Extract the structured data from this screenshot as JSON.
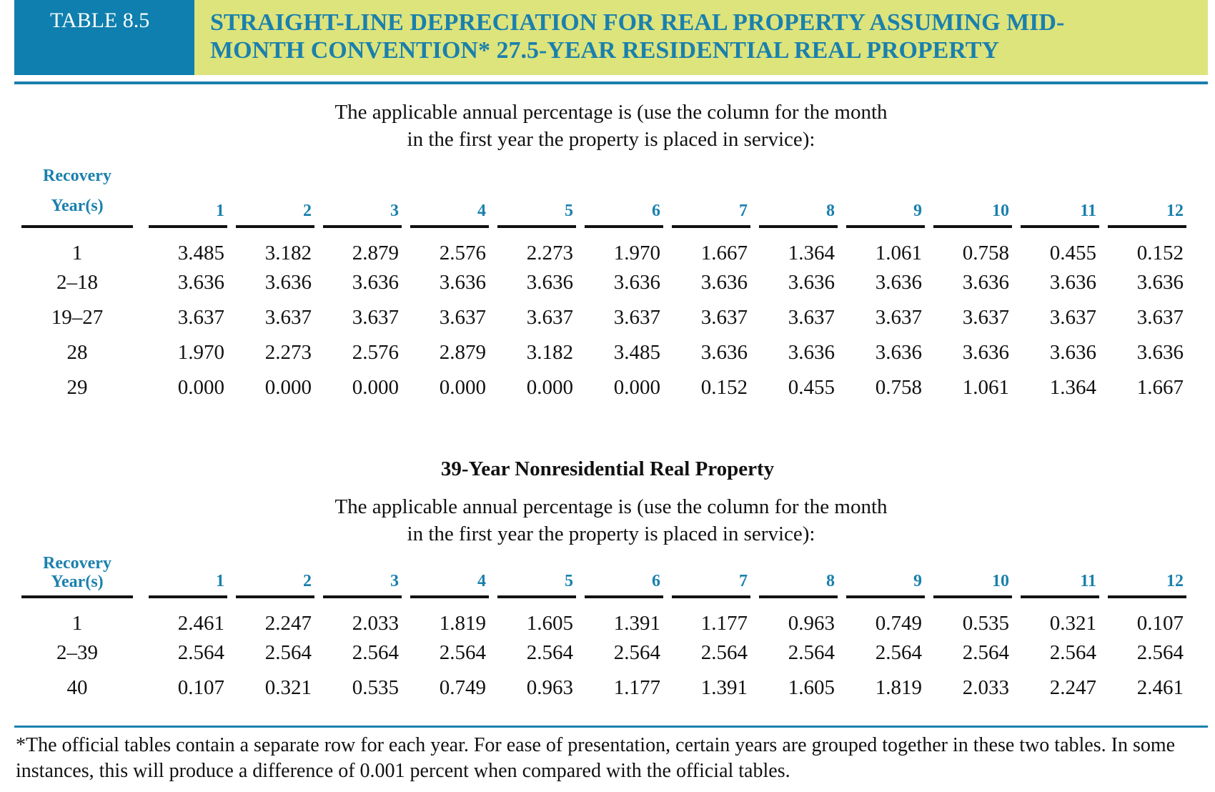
{
  "header": {
    "label": "TABLE 8.5",
    "title": "STRAIGHT-LINE DEPRECIATION FOR REAL PROPERTY ASSUMING MID-MONTH CONVENTION* 27.5-YEAR RESIDENTIAL REAL PROPERTY"
  },
  "tables": [
    {
      "intro": "The applicable annual percentage is (use the column for the month in the first year the property is placed in service):",
      "row_header": "Recovery Year(s)",
      "columns": [
        "1",
        "2",
        "3",
        "4",
        "5",
        "6",
        "7",
        "8",
        "9",
        "10",
        "11",
        "12"
      ],
      "rows": [
        {
          "label": "1",
          "values": [
            "3.485",
            "3.182",
            "2.879",
            "2.576",
            "2.273",
            "1.970",
            "1.667",
            "1.364",
            "1.061",
            "0.758",
            "0.455",
            "0.152"
          ]
        },
        {
          "label": "2–18",
          "values": [
            "3.636",
            "3.636",
            "3.636",
            "3.636",
            "3.636",
            "3.636",
            "3.636",
            "3.636",
            "3.636",
            "3.636",
            "3.636",
            "3.636"
          ]
        },
        {
          "label": "19–27",
          "values": [
            "3.637",
            "3.637",
            "3.637",
            "3.637",
            "3.637",
            "3.637",
            "3.637",
            "3.637",
            "3.637",
            "3.637",
            "3.637",
            "3.637"
          ]
        },
        {
          "label": "28",
          "values": [
            "1.970",
            "2.273",
            "2.576",
            "2.879",
            "3.182",
            "3.485",
            "3.636",
            "3.636",
            "3.636",
            "3.636",
            "3.636",
            "3.636"
          ]
        },
        {
          "label": "29",
          "values": [
            "0.000",
            "0.000",
            "0.000",
            "0.000",
            "0.000",
            "0.000",
            "0.152",
            "0.455",
            "0.758",
            "1.061",
            "1.364",
            "1.667"
          ]
        }
      ]
    },
    {
      "title": "39-Year Nonresidential Real Property",
      "intro": "The applicable annual percentage is (use the column for the month in the first year the property is placed in service):",
      "row_header": "Recovery Year(s)",
      "columns": [
        "1",
        "2",
        "3",
        "4",
        "5",
        "6",
        "7",
        "8",
        "9",
        "10",
        "11",
        "12"
      ],
      "rows": [
        {
          "label": "1",
          "values": [
            "2.461",
            "2.247",
            "2.033",
            "1.819",
            "1.605",
            "1.391",
            "1.177",
            "0.963",
            "0.749",
            "0.535",
            "0.321",
            "0.107"
          ]
        },
        {
          "label": "2–39",
          "values": [
            "2.564",
            "2.564",
            "2.564",
            "2.564",
            "2.564",
            "2.564",
            "2.564",
            "2.564",
            "2.564",
            "2.564",
            "2.564",
            "2.564"
          ]
        },
        {
          "label": "40",
          "values": [
            "0.107",
            "0.321",
            "0.535",
            "0.749",
            "0.963",
            "1.177",
            "1.391",
            "1.605",
            "1.819",
            "2.033",
            "2.247",
            "2.461"
          ]
        }
      ]
    }
  ],
  "footnote": "*The official tables contain a separate row for each year. For ease of presentation, certain years are grouped together in these two tables. In some instances, this will produce a difference of 0.001 percent when compared with the official tables."
}
